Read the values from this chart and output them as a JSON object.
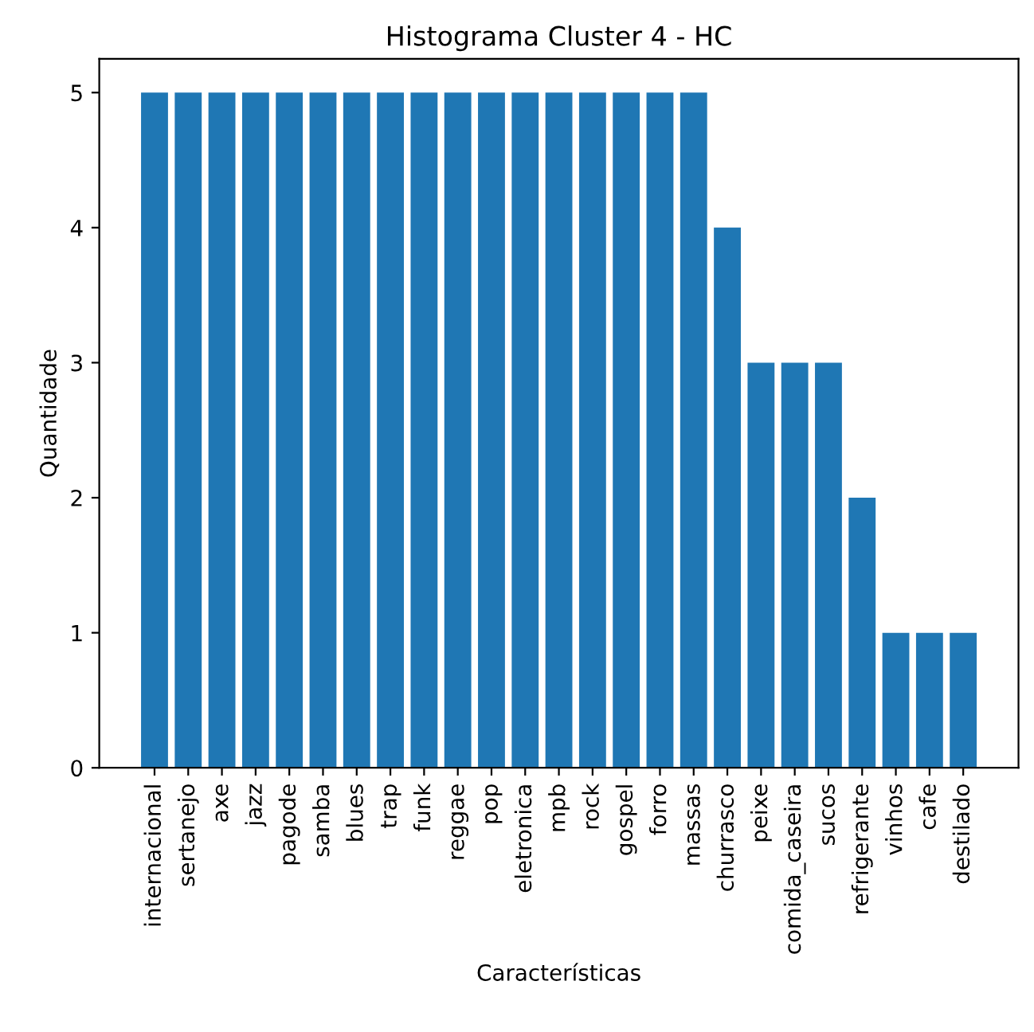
{
  "chart_data": {
    "type": "bar",
    "title": "Histograma Cluster 4 - HC",
    "xlabel": "Características",
    "ylabel": "Quantidade",
    "categories": [
      "internacional",
      "sertanejo",
      "axe",
      "jazz",
      "pagode",
      "samba",
      "blues",
      "trap",
      "funk",
      "reggae",
      "pop",
      "eletronica",
      "mpb",
      "rock",
      "gospel",
      "forro",
      "massas",
      "churrasco",
      "peixe",
      "comida_caseira",
      "sucos",
      "refrigerante",
      "vinhos",
      "cafe",
      "destilado"
    ],
    "values": [
      5,
      5,
      5,
      5,
      5,
      5,
      5,
      5,
      5,
      5,
      5,
      5,
      5,
      5,
      5,
      5,
      5,
      4,
      3,
      3,
      3,
      2,
      1,
      1,
      1
    ],
    "color": "#1f77b4",
    "ylim": [
      0,
      5.25
    ],
    "yticks": [
      0,
      1,
      2,
      3,
      4,
      5
    ],
    "grid": false
  }
}
